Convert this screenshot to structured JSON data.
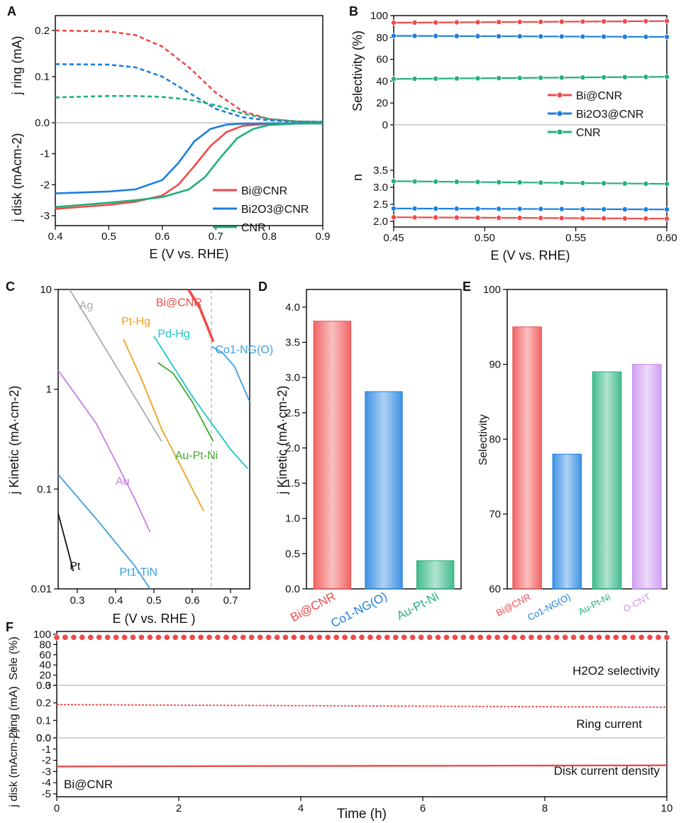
{
  "colors": {
    "red": "#ef4a4a",
    "blue": "#1c7fe0",
    "green": "#22b07a",
    "axis": "#000000",
    "zero": "#b8b8b8",
    "ag": "#aaaaaa",
    "pthg": "#f0a020",
    "au": "#c77fe3",
    "pdhg": "#1cc7c7",
    "aupt": "#3faa2a",
    "co": "#3a9ee0",
    "pt": "#111111",
    "ocnt": "#c890ee"
  },
  "chart_data": [
    {
      "id": "A",
      "label": "A",
      "type": "line",
      "xlabel": "E (V vs. RHE)",
      "xlim": [
        0.4,
        0.9
      ],
      "xticks": [
        "0.4",
        "0.5",
        "0.6",
        "0.7",
        "0.8",
        "0.9"
      ],
      "top": {
        "ylabel": "j ring (mA)",
        "ylim": [
          0,
          0.22
        ],
        "yticks": [
          "0.0",
          "0.1",
          "0.2"
        ],
        "series": [
          {
            "name": "Bi@CNR",
            "color": "red",
            "x": [
              0.4,
              0.5,
              0.55,
              0.6,
              0.65,
              0.7,
              0.75,
              0.8,
              0.85,
              0.9
            ],
            "y": [
              0.2,
              0.198,
              0.19,
              0.165,
              0.12,
              0.065,
              0.025,
              0.008,
              0.003,
              0.002
            ]
          },
          {
            "name": "Bi2O3@CNR",
            "color": "blue",
            "x": [
              0.4,
              0.5,
              0.55,
              0.6,
              0.65,
              0.7,
              0.75,
              0.8,
              0.85,
              0.9
            ],
            "y": [
              0.127,
              0.126,
              0.12,
              0.1,
              0.065,
              0.03,
              0.012,
              0.005,
              0.002,
              0.002
            ]
          },
          {
            "name": "CNR",
            "color": "green",
            "x": [
              0.4,
              0.5,
              0.55,
              0.6,
              0.65,
              0.7,
              0.75,
              0.8,
              0.85,
              0.9
            ],
            "y": [
              0.055,
              0.058,
              0.058,
              0.056,
              0.05,
              0.038,
              0.02,
              0.008,
              0.003,
              0.002
            ]
          }
        ]
      },
      "bottom": {
        "ylabel": "j disk (mAcm-2)",
        "ylim": [
          -3,
          0
        ],
        "yticks": [
          "-1",
          "-2",
          "-3"
        ],
        "series": [
          {
            "name": "Bi@CNR",
            "color": "red",
            "x": [
              0.4,
              0.5,
              0.55,
              0.6,
              0.63,
              0.66,
              0.69,
              0.72,
              0.75,
              0.8,
              0.85,
              0.9
            ],
            "y": [
              -2.78,
              -2.65,
              -2.55,
              -2.35,
              -2.0,
              -1.4,
              -0.75,
              -0.3,
              -0.1,
              -0.03,
              -0.02,
              -0.02
            ]
          },
          {
            "name": "Bi2O3@CNR",
            "color": "blue",
            "x": [
              0.4,
              0.5,
              0.55,
              0.6,
              0.63,
              0.66,
              0.69,
              0.72,
              0.75,
              0.8,
              0.85,
              0.9
            ],
            "y": [
              -2.28,
              -2.22,
              -2.15,
              -1.85,
              -1.3,
              -0.6,
              -0.2,
              -0.06,
              -0.03,
              -0.02,
              -0.02,
              -0.02
            ]
          },
          {
            "name": "CNR",
            "color": "green",
            "x": [
              0.4,
              0.5,
              0.55,
              0.6,
              0.65,
              0.68,
              0.71,
              0.74,
              0.77,
              0.8,
              0.85,
              0.9
            ],
            "y": [
              -2.72,
              -2.58,
              -2.5,
              -2.4,
              -2.15,
              -1.75,
              -1.1,
              -0.5,
              -0.2,
              -0.07,
              -0.03,
              -0.02
            ]
          }
        ]
      },
      "legend": [
        "Bi@CNR",
        "Bi2O3@CNR",
        "CNR"
      ]
    },
    {
      "id": "B",
      "label": "B",
      "type": "line",
      "xlabel": "E (V vs. RHE)",
      "xlim": [
        0.45,
        0.6
      ],
      "xticks": [
        "0.45",
        "0.50",
        "0.55",
        "0.60"
      ],
      "top": {
        "ylabel": "Selectivity (%)",
        "ylim": [
          0,
          100
        ],
        "yticks": [
          "0",
          "20",
          "40",
          "60",
          "80",
          "100"
        ],
        "series": [
          {
            "name": "Bi@CNR",
            "color": "red",
            "x": [
              0.45,
              0.6
            ],
            "y": [
              93.5,
              95
            ]
          },
          {
            "name": "Bi2O3@CNR",
            "color": "blue",
            "x": [
              0.45,
              0.6
            ],
            "y": [
              81.5,
              80.5
            ]
          },
          {
            "name": "CNR",
            "color": "green",
            "x": [
              0.45,
              0.6
            ],
            "y": [
              42,
              44
            ]
          }
        ]
      },
      "bottom": {
        "ylabel": "n",
        "ylim": [
          2.0,
          3.5
        ],
        "yticks": [
          "2.0",
          "2.5",
          "3.0",
          "3.5"
        ],
        "series": [
          {
            "name": "Bi@CNR",
            "color": "red",
            "x": [
              0.45,
              0.6
            ],
            "y": [
              2.12,
              2.08
            ]
          },
          {
            "name": "Bi2O3@CNR",
            "color": "blue",
            "x": [
              0.45,
              0.6
            ],
            "y": [
              2.38,
              2.35
            ]
          },
          {
            "name": "CNR",
            "color": "green",
            "x": [
              0.45,
              0.6
            ],
            "y": [
              3.18,
              3.1
            ]
          }
        ]
      },
      "legend": [
        "Bi@CNR",
        "Bi2O3@CNR",
        "CNR"
      ]
    },
    {
      "id": "C",
      "label": "C",
      "type": "line",
      "yscale": "log",
      "xlabel": "E (V vs. RHE )",
      "ylabel": "j Kinetic (mA·cm-2)",
      "xlim": [
        0.25,
        0.75
      ],
      "ylim": [
        0.01,
        10
      ],
      "xticks": [
        "0.3",
        "0.4",
        "0.5",
        "0.6",
        "0.7"
      ],
      "yticks": [
        "0.01",
        "0.1",
        "1",
        "10"
      ],
      "vline": 0.65,
      "series": [
        {
          "name": "Bi@CNR",
          "color": "red",
          "x": [
            0.59,
            0.62,
            0.64,
            0.655
          ],
          "y": [
            10,
            6.5,
            4.2,
            3.0
          ]
        },
        {
          "name": "Ag",
          "color": "ag",
          "x": [
            0.28,
            0.52
          ],
          "y": [
            10,
            0.3
          ]
        },
        {
          "name": "Pt-Hg",
          "color": "pthg",
          "x": [
            0.42,
            0.47,
            0.52,
            0.57,
            0.63
          ],
          "y": [
            3.2,
            1.2,
            0.4,
            0.17,
            0.06
          ]
        },
        {
          "name": "Pd-Hg",
          "color": "pdhg",
          "x": [
            0.5,
            0.6,
            0.7,
            0.745
          ],
          "y": [
            3.4,
            0.85,
            0.25,
            0.16
          ]
        },
        {
          "name": "Co1-NG(O)",
          "color": "co",
          "x": [
            0.65,
            0.68,
            0.71,
            0.75
          ],
          "y": [
            2.7,
            2.3,
            1.7,
            0.75
          ]
        },
        {
          "name": "Au-Pt-Ni",
          "color": "aupt",
          "x": [
            0.51,
            0.55,
            0.6,
            0.655
          ],
          "y": [
            1.85,
            1.45,
            0.75,
            0.3
          ]
        },
        {
          "name": "Au",
          "color": "au",
          "x": [
            0.25,
            0.35,
            0.45,
            0.49
          ],
          "y": [
            1.55,
            0.45,
            0.08,
            0.037
          ]
        },
        {
          "name": "Pt1-TiN",
          "color": "co",
          "x": [
            0.25,
            0.35,
            0.45,
            0.49
          ],
          "y": [
            0.14,
            0.05,
            0.017,
            0.01
          ]
        },
        {
          "name": "Pt",
          "color": "pt",
          "x": [
            0.25,
            0.29
          ],
          "y": [
            0.057,
            0.015
          ]
        }
      ]
    },
    {
      "id": "D",
      "label": "D",
      "type": "bar",
      "ylabel": "j Kinetic (mA·cm-2)",
      "ylim": [
        0,
        4.25
      ],
      "yticks": [
        "0.0",
        "0.5",
        "1.0",
        "1.5",
        "2.0",
        "2.5",
        "3.0",
        "3.5",
        "4.0"
      ],
      "categories": [
        "Bi@CNR",
        "Co1-NG(O)",
        "Au-Pt-Ni"
      ],
      "values": [
        3.8,
        2.8,
        0.4
      ]
    },
    {
      "id": "E",
      "label": "E",
      "type": "bar",
      "ylabel": "Selectivity",
      "ylim": [
        60,
        100
      ],
      "yticks": [
        "60",
        "70",
        "80",
        "90",
        "100"
      ],
      "categories": [
        "Bi@CNR",
        "Co1-NG(O)",
        "Au-Pt-Ni",
        "O-CNT"
      ],
      "values": [
        95,
        78,
        89,
        90
      ]
    },
    {
      "id": "F",
      "label": "F",
      "type": "line",
      "xlabel": "Time (h)",
      "xlim": [
        0,
        10
      ],
      "xticks": [
        "0",
        "2",
        "4",
        "6",
        "8",
        "10"
      ],
      "sele": {
        "ylabel": "Sele (%)",
        "ylim": [
          0,
          100
        ],
        "yticks": [
          "0",
          "20",
          "40",
          "60",
          "80",
          "100"
        ],
        "value": 94,
        "annotation": "H2O2 selectivity"
      },
      "ring": {
        "ylabel": "j ring (mA)",
        "ylim": [
          0,
          0.3
        ],
        "yticks": [
          "0.0",
          "0.1",
          "0.2",
          "0.3"
        ],
        "x": [
          0,
          10
        ],
        "y": [
          0.19,
          0.175
        ],
        "annotation": "Ring current"
      },
      "disk": {
        "ylabel": "j disk (mAcm-2)",
        "ylim": [
          -5,
          0
        ],
        "yticks": [
          "0.0",
          "-1",
          "-2",
          "-3",
          "-4",
          "-5"
        ],
        "x": [
          0,
          10
        ],
        "y": [
          -2.55,
          -2.45
        ],
        "annotation": "Disk current density"
      },
      "sample": "Bi@CNR"
    }
  ]
}
